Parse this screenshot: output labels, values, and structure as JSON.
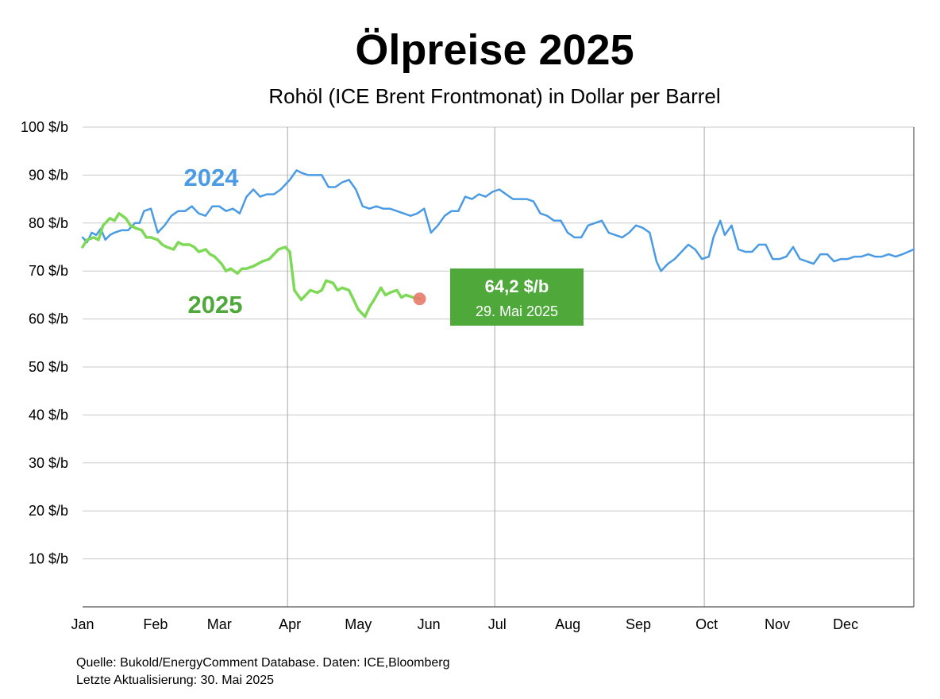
{
  "title": "Ölpreise 2025",
  "subtitle": "Rohöl (ICE Brent Frontmonat) in Dollar per Barrel",
  "source": {
    "line1": "Quelle: Bukold/EnergyComment Database. Daten: ICE,Bloomberg",
    "line2": "Letzte Aktualisierung: 30. Mai 2025"
  },
  "chart_data": {
    "type": "line",
    "title": "Ölpreise 2025",
    "subtitle": "Rohöl (ICE Brent Frontmonat) in Dollar per Barrel",
    "x_months": [
      "Jan",
      "Feb",
      "Mar",
      "Apr",
      "May",
      "Jun",
      "Jul",
      "Aug",
      "Sep",
      "Oct",
      "Nov",
      "Dec"
    ],
    "y_ticks": [
      "10 $/b",
      "20 $/b",
      "30 $/b",
      "40 $/b",
      "50 $/b",
      "60 $/b",
      "70 $/b",
      "80 $/b",
      "90 $/b",
      "100 $/b"
    ],
    "ylim": [
      0,
      100
    ],
    "grid": true,
    "series": [
      {
        "name": "2024",
        "color": "#4a9be4",
        "x": [
          "2024-01-01",
          "2024-01-03",
          "2024-01-05",
          "2024-01-07",
          "2024-01-09",
          "2024-01-11",
          "2024-01-13",
          "2024-01-15",
          "2024-01-18",
          "2024-01-21",
          "2024-01-24",
          "2024-01-26",
          "2024-01-28",
          "2024-01-31",
          "2024-02-03",
          "2024-02-06",
          "2024-02-09",
          "2024-02-12",
          "2024-02-15",
          "2024-02-18",
          "2024-02-21",
          "2024-02-24",
          "2024-02-27",
          "2024-03-01",
          "2024-03-04",
          "2024-03-07",
          "2024-03-10",
          "2024-03-13",
          "2024-03-16",
          "2024-03-19",
          "2024-03-22",
          "2024-03-25",
          "2024-03-28",
          "2024-04-01",
          "2024-04-04",
          "2024-04-06",
          "2024-04-09",
          "2024-04-12",
          "2024-04-15",
          "2024-04-18",
          "2024-04-21",
          "2024-04-24",
          "2024-04-27",
          "2024-04-30",
          "2024-05-03",
          "2024-05-06",
          "2024-05-09",
          "2024-05-12",
          "2024-05-15",
          "2024-05-18",
          "2024-05-21",
          "2024-05-24",
          "2024-05-27",
          "2024-05-30",
          "2024-06-02",
          "2024-06-05",
          "2024-06-08",
          "2024-06-11",
          "2024-06-14",
          "2024-06-17",
          "2024-06-20",
          "2024-06-23",
          "2024-06-26",
          "2024-06-29",
          "2024-07-02",
          "2024-07-05",
          "2024-07-08",
          "2024-07-11",
          "2024-07-14",
          "2024-07-17",
          "2024-07-20",
          "2024-07-23",
          "2024-07-26",
          "2024-07-29",
          "2024-08-01",
          "2024-08-04",
          "2024-08-07",
          "2024-08-10",
          "2024-08-13",
          "2024-08-16",
          "2024-08-19",
          "2024-08-22",
          "2024-08-25",
          "2024-08-28",
          "2024-08-31",
          "2024-09-03",
          "2024-09-06",
          "2024-09-09",
          "2024-09-11",
          "2024-09-14",
          "2024-09-17",
          "2024-09-20",
          "2024-09-23",
          "2024-09-26",
          "2024-09-29",
          "2024-10-02",
          "2024-10-04",
          "2024-10-07",
          "2024-10-09",
          "2024-10-12",
          "2024-10-15",
          "2024-10-18",
          "2024-10-21",
          "2024-10-24",
          "2024-10-27",
          "2024-10-30",
          "2024-11-02",
          "2024-11-05",
          "2024-11-08",
          "2024-11-11",
          "2024-11-14",
          "2024-11-17",
          "2024-11-20",
          "2024-11-23",
          "2024-11-26",
          "2024-11-29",
          "2024-12-02",
          "2024-12-05",
          "2024-12-08",
          "2024-12-11",
          "2024-12-14",
          "2024-12-17",
          "2024-12-20",
          "2024-12-23",
          "2024-12-26",
          "2024-12-31"
        ],
        "values": [
          77.0,
          76.0,
          78.0,
          77.5,
          78.8,
          76.5,
          77.5,
          78.0,
          78.5,
          78.5,
          80.0,
          80.0,
          82.5,
          83.0,
          78.0,
          79.5,
          81.5,
          82.5,
          82.5,
          83.5,
          82.0,
          81.5,
          83.5,
          83.5,
          82.5,
          83.0,
          82.0,
          85.5,
          87.0,
          85.5,
          86.0,
          86.0,
          87.0,
          89.0,
          91.0,
          90.5,
          90.0,
          90.0,
          90.0,
          87.5,
          87.5,
          88.5,
          89.0,
          87.0,
          83.5,
          83.0,
          83.5,
          83.0,
          83.0,
          82.5,
          82.0,
          81.5,
          82.0,
          83.0,
          78.0,
          79.5,
          81.5,
          82.5,
          82.5,
          85.5,
          85.0,
          86.0,
          85.5,
          86.5,
          87.0,
          86.0,
          85.0,
          85.0,
          85.0,
          84.5,
          82.0,
          81.5,
          80.5,
          80.5,
          78.0,
          77.0,
          77.0,
          79.5,
          80.0,
          80.5,
          78.0,
          77.5,
          77.0,
          78.0,
          79.5,
          79.0,
          78.0,
          72.0,
          70.0,
          71.5,
          72.5,
          74.0,
          75.5,
          74.5,
          72.5,
          73.0,
          77.0,
          80.5,
          77.5,
          79.5,
          74.5,
          74.0,
          74.0,
          75.5,
          75.5,
          72.5,
          72.5,
          73.0,
          75.0,
          72.5,
          72.0,
          71.5,
          73.5,
          73.5,
          72.0,
          72.5,
          72.5,
          73.0,
          73.0,
          73.5,
          73.0,
          73.0,
          73.5,
          73.0,
          73.5,
          74.5
        ]
      },
      {
        "name": "2025",
        "color": "#7ed957",
        "x": [
          "2025-01-01",
          "2025-01-03",
          "2025-01-06",
          "2025-01-08",
          "2025-01-10",
          "2025-01-13",
          "2025-01-15",
          "2025-01-17",
          "2025-01-20",
          "2025-01-22",
          "2025-01-24",
          "2025-01-27",
          "2025-01-29",
          "2025-01-31",
          "2025-02-03",
          "2025-02-05",
          "2025-02-07",
          "2025-02-10",
          "2025-02-12",
          "2025-02-14",
          "2025-02-17",
          "2025-02-19",
          "2025-02-21",
          "2025-02-24",
          "2025-02-26",
          "2025-02-28",
          "2025-03-03",
          "2025-03-05",
          "2025-03-07",
          "2025-03-10",
          "2025-03-12",
          "2025-03-14",
          "2025-03-17",
          "2025-03-19",
          "2025-03-21",
          "2025-03-24",
          "2025-03-26",
          "2025-03-28",
          "2025-03-31",
          "2025-04-02",
          "2025-04-04",
          "2025-04-07",
          "2025-04-09",
          "2025-04-11",
          "2025-04-14",
          "2025-04-16",
          "2025-04-18",
          "2025-04-21",
          "2025-04-23",
          "2025-04-25",
          "2025-04-28",
          "2025-04-30",
          "2025-05-02",
          "2025-05-05",
          "2025-05-07",
          "2025-05-09",
          "2025-05-12",
          "2025-05-14",
          "2025-05-16",
          "2025-05-19",
          "2025-05-21",
          "2025-05-23",
          "2025-05-26",
          "2025-05-29"
        ],
        "values": [
          75.0,
          76.5,
          77.0,
          76.5,
          79.5,
          81.0,
          80.5,
          82.0,
          81.0,
          79.5,
          79.0,
          78.5,
          77.0,
          77.0,
          76.5,
          75.5,
          75.0,
          74.5,
          76.0,
          75.5,
          75.5,
          75.0,
          74.0,
          74.5,
          73.5,
          73.0,
          71.5,
          70.0,
          70.5,
          69.5,
          70.5,
          70.5,
          71.0,
          71.5,
          72.0,
          72.5,
          73.5,
          74.5,
          75.0,
          74.0,
          66.0,
          64.0,
          65.0,
          66.0,
          65.5,
          66.0,
          68.0,
          67.5,
          66.0,
          66.5,
          66.0,
          64.0,
          62.0,
          60.5,
          62.5,
          64.0,
          66.5,
          65.0,
          65.5,
          66.0,
          64.5,
          65.0,
          64.5,
          64.2
        ]
      }
    ],
    "annotations": {
      "label_2024": "2024",
      "label_2025": "2025",
      "last_value": "64,2 $/b",
      "last_date": "29. Mai 2025"
    }
  }
}
